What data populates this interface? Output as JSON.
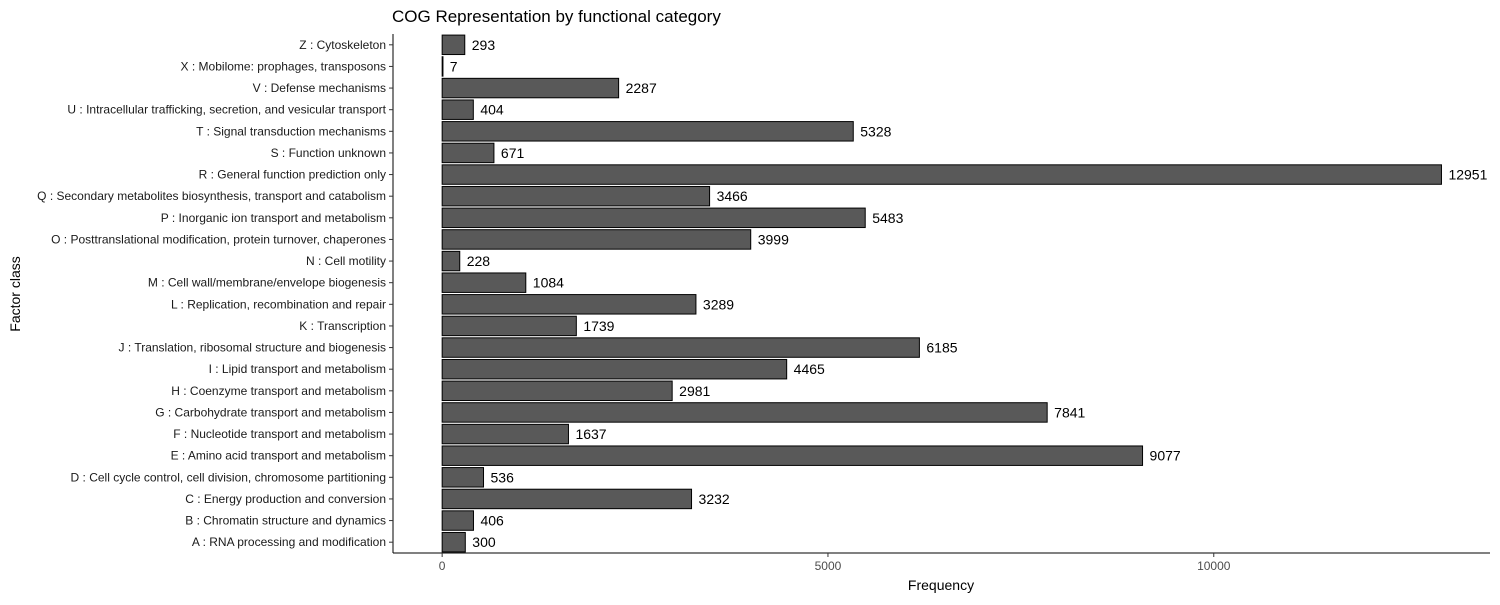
{
  "chart_data": {
    "type": "bar",
    "orientation": "horizontal",
    "title": "COG Representation by functional category",
    "xlabel": "Frequency",
    "ylabel": "Factor class",
    "xlim": [
      -637,
      13580
    ],
    "xticks": [
      0,
      5000,
      10000
    ],
    "xtick_labels": [
      "0",
      "5000",
      "10000"
    ],
    "grid": false,
    "legend": "none",
    "bar_fill": "#595959",
    "bar_stroke": "#000000",
    "categories": [
      "A : RNA processing and modification",
      "B : Chromatin structure and dynamics",
      "C : Energy production and conversion",
      "D : Cell cycle control, cell division, chromosome partitioning",
      "E : Amino acid transport and metabolism",
      "F : Nucleotide transport and metabolism",
      "G : Carbohydrate transport and metabolism",
      "H : Coenzyme transport and metabolism",
      "I : Lipid transport and metabolism",
      "J : Translation, ribosomal structure and biogenesis",
      "K : Transcription",
      "L : Replication, recombination and repair",
      "M : Cell wall/membrane/envelope biogenesis",
      "N : Cell motility",
      "O : Posttranslational modification, protein turnover, chaperones",
      "P : Inorganic ion transport and metabolism",
      "Q : Secondary metabolites biosynthesis, transport and catabolism",
      "R : General function prediction only",
      "S : Function unknown",
      "T : Signal transduction mechanisms",
      "U : Intracellular trafficking, secretion, and vesicular transport",
      "V : Defense mechanisms",
      "X : Mobilome: prophages, transposons",
      "Z : Cytoskeleton"
    ],
    "values": [
      300,
      406,
      3232,
      536,
      9077,
      1637,
      7841,
      2981,
      4465,
      6185,
      1739,
      3289,
      1084,
      228,
      3999,
      5483,
      3466,
      12951,
      671,
      5328,
      404,
      2287,
      7,
      293
    ]
  }
}
